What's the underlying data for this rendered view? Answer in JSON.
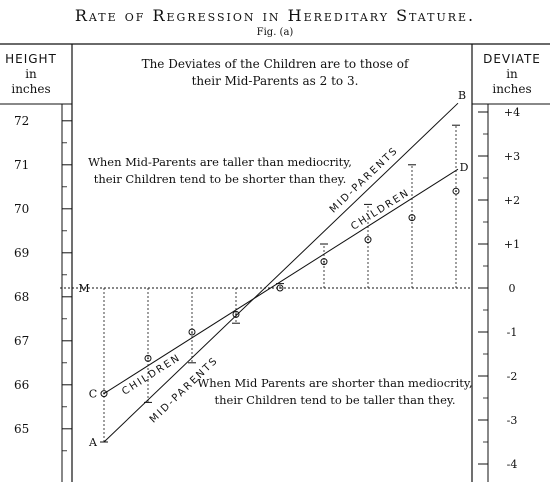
{
  "title": "Rate of Regression in Hereditary Stature.",
  "fig_label": "Fig. (a)",
  "left_header": {
    "line1": "HEIGHT",
    "line2": "in",
    "line3": "inches"
  },
  "right_header": {
    "line1": "DEVIATE",
    "line2": "in",
    "line3": "inches"
  },
  "notes": {
    "top": {
      "line1": "The Deviates of the Children are to those of",
      "line2": "their Mid-Parents as 2 to 3."
    },
    "upper": {
      "line1": "When Mid-Parents are taller than mediocrity,",
      "line2": "their Children tend to be shorter than they."
    },
    "lower": {
      "line1": "When Mid Parents are shorter than mediocrity,",
      "line2": "their Children tend to be taller than they."
    }
  },
  "colors": {
    "ink": "#111111",
    "background": "#ffffff"
  },
  "chart_data": {
    "type": "line",
    "title": "Rate of Regression in Hereditary Stature.",
    "xlabel": "",
    "ylabel": "Height in inches",
    "y2label": "Deviate in inches",
    "ylim": [
      64.2,
      72.4
    ],
    "y_ticks": [
      65,
      66,
      67,
      68,
      69,
      70,
      71,
      72
    ],
    "y2_ticks": [
      "+4",
      "+3",
      "+2",
      "+1",
      "0",
      "-1",
      "-2",
      "-3",
      "-4"
    ],
    "y2_tick_heights": [
      72.2,
      71.2,
      70.2,
      69.2,
      68.2,
      67.2,
      66.2,
      65.2,
      64.2
    ],
    "mediocrity_label": "M",
    "mediocrity_height": 68.2,
    "x": [
      1,
      2,
      3,
      4,
      5,
      6,
      7,
      8,
      9
    ],
    "series": [
      {
        "name": "MID-PARENTS",
        "start_label": "A",
        "end_label": "B",
        "line_start": 64.7,
        "line_end": 72.4,
        "values": [
          64.7,
          65.6,
          66.5,
          67.4,
          68.3,
          69.2,
          70.1,
          71.0,
          71.9
        ]
      },
      {
        "name": "CHILDREN",
        "start_label": "C",
        "end_label": "D",
        "line_start": 65.8,
        "line_end": 70.9,
        "values": [
          65.8,
          66.6,
          67.2,
          67.6,
          68.2,
          68.8,
          69.3,
          69.8,
          70.4
        ]
      }
    ]
  }
}
